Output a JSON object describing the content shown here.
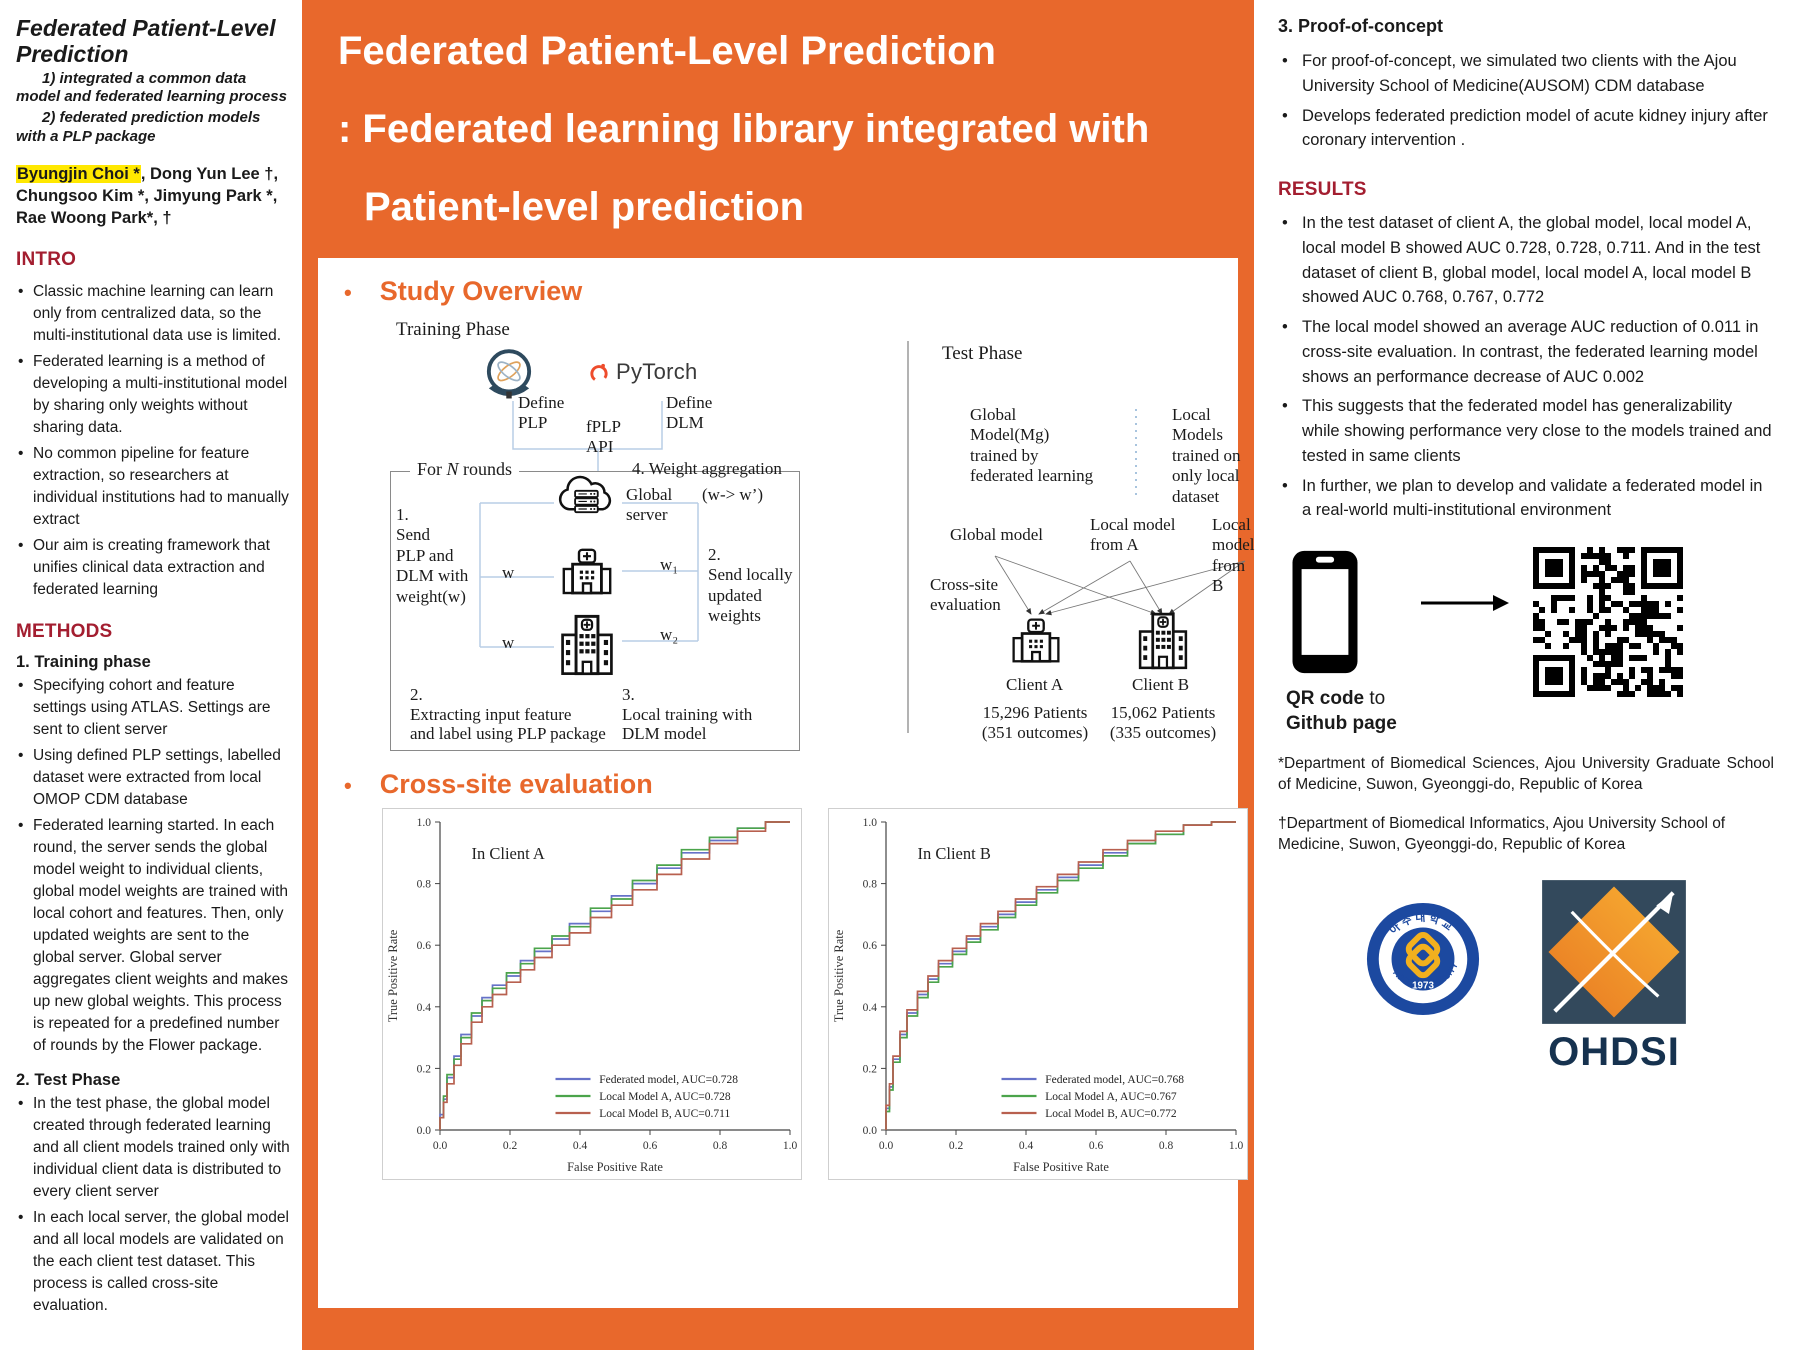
{
  "colors": {
    "orange": "#E8682C",
    "maroon": "#A31E30",
    "highlight": "#FFE800",
    "roc_blue": "#6672C8",
    "roc_green": "#4BA44B",
    "roc_red": "#B8604F"
  },
  "left": {
    "title": "Federated Patient-Level\nPrediction",
    "subtitle1": "1) integrated a common data model and federated learning process",
    "subtitle2": "2)  federated prediction models with a PLP package",
    "authors": {
      "first": "Byungjin Choi *",
      "line1_rest": ", Dong Yun Lee †,",
      "line2": "Chungsoo Kim *, Jimyung Park *,",
      "line3": "Rae Woong Park*, †"
    },
    "intro": {
      "heading": "INTRO",
      "bullets": [
        "Classic machine learning can learn only from centralized data, so the multi-institutional data use is limited.",
        "Federated learning is a method of developing a multi-institutional model by sharing only weights without sharing data.",
        "No common pipeline for feature extraction, so researchers at individual institutions had to manually extract",
        "Our aim is creating framework that unifies clinical data extraction and federated learning"
      ]
    },
    "methods": {
      "heading": "METHODS",
      "training_heading": "1.  Training phase",
      "training_bullets": [
        "Specifying cohort and feature settings using ATLAS. Settings are sent to client server",
        "Using defined PLP settings,  labelled dataset were extracted from local OMOP CDM database",
        "Federated learning started. In each round, the server sends the global model weight to individual clients, global model weights are trained with local cohort and features. Then, only updated weights are sent to the global server. Global server aggregates client weights and makes up new global weights. This process is repeated for a predefined number of rounds by the Flower package."
      ],
      "test_heading": "2. Test Phase",
      "test_bullets": [
        "In the test phase, the global model created through federated learning and all client models trained only with individual client data is distributed to every client server",
        "In each local server, the global model and all local models are validated on the each client test dataset. This process is called cross-site evaluation."
      ]
    }
  },
  "center": {
    "banner": {
      "line1": "Federated Patient-Level Prediction",
      "line2": ": Federated learning library integrated with",
      "line3": "Patient-level prediction"
    },
    "study_overview_heading": "Study Overview",
    "cross_site_heading": "Cross-site evaluation",
    "diagram": {
      "training_phase": "Training Phase",
      "test_phase": "Test Phase",
      "pytorch": "PyTorch",
      "define_plp": "Define\nPLP",
      "fplp_api": "fPLP\nAPI",
      "define_dlm": "Define\nDLM",
      "for_n_prefix": "For ",
      "for_n_italic": "N",
      "for_n_suffix": " rounds",
      "step1": "1.\nSend\nPLP and\nDLM with\nweight(w)",
      "step4": "4. Weight aggregation",
      "w_prime": "(w-> w’)",
      "global_server": "Global\nserver",
      "w_a": "w",
      "w_b": "w",
      "w1": "w₁",
      "w2": "w₂",
      "step2_right": "2.\nSend locally\nupdated\nweights",
      "step2_bottom": "2.\nExtracting input feature\nand label using PLP package",
      "step3_bottom": "3.\nLocal training with\nDLM model",
      "global_model_mg": "Global\nModel(Mg)\ntrained by\nfederated learning",
      "local_models": "Local\nModels\ntrained on\nonly local dataset",
      "global_model": "Global model",
      "local_model_a": "Local model\nfrom A",
      "local_model_b": "Local model\nfrom B",
      "cross_site": "Cross-site\nevaluation",
      "client_a": "Client A",
      "client_b": "Client B",
      "client_a_patients": "15,296 Patients\n(351 outcomes)",
      "client_b_patients": "15,062 Patients\n(335 outcomes)"
    }
  },
  "right": {
    "proof": {
      "heading": "3. Proof-of-concept",
      "bullets": [
        "For proof-of-concept, we simulated two clients with the Ajou University School of Medicine(AUSOM) CDM database",
        "Develops federated prediction model of  acute kidney injury after coronary intervention ."
      ]
    },
    "results": {
      "heading": "RESULTS",
      "bullets": [
        "In the test dataset of client A, the global model, local model A, local model B showed AUC 0.728, 0.728, 0.711. And in the test dataset of client B, global model, local model A, local model B showed AUC 0.768, 0.767, 0.772",
        "The local model showed an average AUC reduction of 0.011 in cross-site evaluation. In contrast, the federated learning model shows an performance decrease of AUC 0.002",
        "This suggests that the federated model has generalizability while showing performance very close to the models trained and tested in same clients",
        "In further, we plan to develop and validate a federated model in a real-world multi-institutional environment"
      ]
    },
    "qr": {
      "label_bold1": "QR code",
      "label_rest": " to",
      "label_line2": "Github page"
    },
    "affiliation1": "*Department of Biomedical Sciences, Ajou University Graduate School of Medicine, Suwon, Gyeonggi-do, Republic of Korea",
    "affiliation2": "†Department of Biomedical Informatics, Ajou University School of Medicine, Suwon, Gyeonggi-do, Republic of Korea",
    "logos": {
      "ajou_top": "아 주 대 학 교",
      "ajou_bottom": "AJOU UNIVERSITY",
      "ajou_year": "1973",
      "ohdsi_text": "OHDSI"
    }
  },
  "chart_data": [
    {
      "type": "line",
      "title": "In Client A",
      "xlabel": "False Positive Rate",
      "ylabel": "True Positive Rate",
      "xlim": [
        0,
        1
      ],
      "ylim": [
        0,
        1
      ],
      "ticks": [
        0.0,
        0.2,
        0.4,
        0.6,
        0.8,
        1.0
      ],
      "grid": false,
      "legend_position": "lower right",
      "series": [
        {
          "name": "Federated model, AUC=0.728",
          "color": "#6672C8",
          "x": [
            0,
            0.01,
            0.02,
            0.04,
            0.06,
            0.09,
            0.12,
            0.15,
            0.19,
            0.23,
            0.27,
            0.32,
            0.37,
            0.43,
            0.49,
            0.55,
            0.62,
            0.69,
            0.77,
            0.85,
            0.93,
            1.0
          ],
          "y": [
            0,
            0.05,
            0.1,
            0.17,
            0.24,
            0.31,
            0.37,
            0.43,
            0.47,
            0.5,
            0.55,
            0.58,
            0.62,
            0.67,
            0.71,
            0.76,
            0.8,
            0.85,
            0.9,
            0.94,
            0.98,
            1.0
          ]
        },
        {
          "name": "Local Model A, AUC=0.728",
          "color": "#4BA44B",
          "x": [
            0,
            0.01,
            0.02,
            0.04,
            0.06,
            0.09,
            0.12,
            0.15,
            0.19,
            0.23,
            0.27,
            0.32,
            0.37,
            0.43,
            0.49,
            0.55,
            0.62,
            0.69,
            0.77,
            0.85,
            0.93,
            1.0
          ],
          "y": [
            0,
            0.04,
            0.11,
            0.18,
            0.23,
            0.3,
            0.38,
            0.42,
            0.46,
            0.51,
            0.54,
            0.59,
            0.63,
            0.66,
            0.72,
            0.75,
            0.81,
            0.86,
            0.91,
            0.95,
            0.98,
            1.0
          ]
        },
        {
          "name": "Local Model B, AUC=0.711",
          "color": "#B8604F",
          "x": [
            0,
            0.01,
            0.02,
            0.04,
            0.06,
            0.09,
            0.12,
            0.15,
            0.19,
            0.23,
            0.27,
            0.32,
            0.37,
            0.43,
            0.49,
            0.55,
            0.62,
            0.69,
            0.77,
            0.85,
            0.93,
            1.0
          ],
          "y": [
            0,
            0.04,
            0.09,
            0.15,
            0.21,
            0.28,
            0.35,
            0.4,
            0.44,
            0.48,
            0.52,
            0.56,
            0.6,
            0.64,
            0.69,
            0.73,
            0.78,
            0.83,
            0.88,
            0.93,
            0.97,
            1.0
          ]
        }
      ]
    },
    {
      "type": "line",
      "title": "In Client B",
      "xlabel": "False Positive Rate",
      "ylabel": "True Positive Rate",
      "xlim": [
        0,
        1
      ],
      "ylim": [
        0,
        1
      ],
      "ticks": [
        0.0,
        0.2,
        0.4,
        0.6,
        0.8,
        1.0
      ],
      "grid": false,
      "legend_position": "lower right",
      "series": [
        {
          "name": "Federated model, AUC=0.768",
          "color": "#6672C8",
          "x": [
            0,
            0.01,
            0.02,
            0.04,
            0.06,
            0.09,
            0.12,
            0.15,
            0.19,
            0.23,
            0.27,
            0.32,
            0.37,
            0.43,
            0.49,
            0.55,
            0.62,
            0.69,
            0.77,
            0.85,
            0.93,
            1.0
          ],
          "y": [
            0,
            0.07,
            0.14,
            0.23,
            0.31,
            0.38,
            0.44,
            0.49,
            0.54,
            0.58,
            0.62,
            0.66,
            0.7,
            0.74,
            0.78,
            0.82,
            0.86,
            0.9,
            0.93,
            0.96,
            0.99,
            1.0
          ]
        },
        {
          "name": "Local Model A, AUC=0.767",
          "color": "#4BA44B",
          "x": [
            0,
            0.01,
            0.02,
            0.04,
            0.06,
            0.09,
            0.12,
            0.15,
            0.19,
            0.23,
            0.27,
            0.32,
            0.37,
            0.43,
            0.49,
            0.55,
            0.62,
            0.69,
            0.77,
            0.85,
            0.93,
            1.0
          ],
          "y": [
            0,
            0.06,
            0.13,
            0.22,
            0.3,
            0.37,
            0.43,
            0.48,
            0.53,
            0.57,
            0.61,
            0.65,
            0.69,
            0.73,
            0.77,
            0.81,
            0.85,
            0.89,
            0.93,
            0.96,
            0.99,
            1.0
          ]
        },
        {
          "name": "Local Model B, AUC=0.772",
          "color": "#B8604F",
          "x": [
            0,
            0.01,
            0.02,
            0.04,
            0.06,
            0.09,
            0.12,
            0.15,
            0.19,
            0.23,
            0.27,
            0.32,
            0.37,
            0.43,
            0.49,
            0.55,
            0.62,
            0.69,
            0.77,
            0.85,
            0.93,
            1.0
          ],
          "y": [
            0,
            0.08,
            0.15,
            0.24,
            0.32,
            0.39,
            0.45,
            0.5,
            0.55,
            0.59,
            0.63,
            0.67,
            0.71,
            0.75,
            0.79,
            0.83,
            0.87,
            0.91,
            0.94,
            0.97,
            0.99,
            1.0
          ]
        }
      ]
    }
  ]
}
